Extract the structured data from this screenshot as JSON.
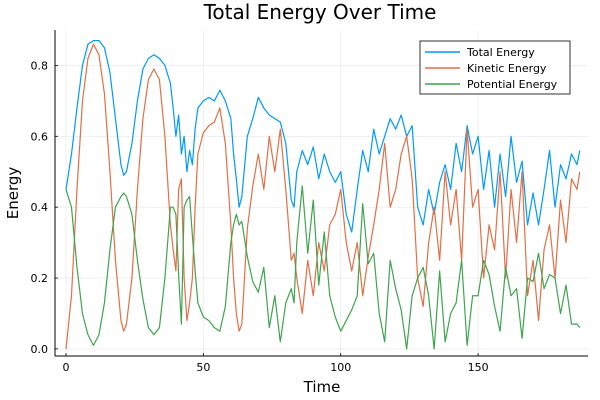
{
  "chart_data": {
    "type": "line",
    "title": "Total Energy Over Time",
    "xlabel": "Time",
    "ylabel": "Energy",
    "xlim": [
      -4,
      190
    ],
    "ylim": [
      -0.02,
      0.9
    ],
    "xticks": [
      0,
      50,
      100,
      150
    ],
    "yticks": [
      0.0,
      0.2,
      0.4,
      0.6,
      0.8
    ],
    "grid": true,
    "legend_position": "top-right",
    "series": [
      {
        "name": "Total Energy",
        "color": "#009af9",
        "points": [
          [
            0,
            0.45
          ],
          [
            2,
            0.55
          ],
          [
            4,
            0.68
          ],
          [
            6,
            0.8
          ],
          [
            8,
            0.86
          ],
          [
            10,
            0.87
          ],
          [
            12,
            0.87
          ],
          [
            14,
            0.85
          ],
          [
            16,
            0.78
          ],
          [
            18,
            0.65
          ],
          [
            20,
            0.52
          ],
          [
            21,
            0.49
          ],
          [
            22,
            0.5
          ],
          [
            24,
            0.58
          ],
          [
            26,
            0.7
          ],
          [
            28,
            0.79
          ],
          [
            30,
            0.82
          ],
          [
            32,
            0.83
          ],
          [
            34,
            0.82
          ],
          [
            36,
            0.8
          ],
          [
            38,
            0.75
          ],
          [
            39,
            0.68
          ],
          [
            40,
            0.6
          ],
          [
            41,
            0.66
          ],
          [
            42,
            0.55
          ],
          [
            43,
            0.6
          ],
          [
            44,
            0.5
          ],
          [
            45,
            0.56
          ],
          [
            46,
            0.52
          ],
          [
            47,
            0.62
          ],
          [
            48,
            0.68
          ],
          [
            50,
            0.7
          ],
          [
            52,
            0.71
          ],
          [
            54,
            0.7
          ],
          [
            56,
            0.73
          ],
          [
            58,
            0.7
          ],
          [
            60,
            0.65
          ],
          [
            61,
            0.55
          ],
          [
            62,
            0.48
          ],
          [
            63,
            0.4
          ],
          [
            64,
            0.43
          ],
          [
            66,
            0.6
          ],
          [
            68,
            0.65
          ],
          [
            70,
            0.71
          ],
          [
            72,
            0.68
          ],
          [
            74,
            0.66
          ],
          [
            76,
            0.65
          ],
          [
            78,
            0.64
          ],
          [
            80,
            0.58
          ],
          [
            81,
            0.5
          ],
          [
            82,
            0.42
          ],
          [
            83,
            0.4
          ],
          [
            84,
            0.5
          ],
          [
            86,
            0.56
          ],
          [
            88,
            0.52
          ],
          [
            90,
            0.57
          ],
          [
            92,
            0.48
          ],
          [
            94,
            0.55
          ],
          [
            96,
            0.5
          ],
          [
            98,
            0.47
          ],
          [
            100,
            0.5
          ],
          [
            102,
            0.38
          ],
          [
            104,
            0.33
          ],
          [
            106,
            0.45
          ],
          [
            108,
            0.56
          ],
          [
            110,
            0.5
          ],
          [
            112,
            0.62
          ],
          [
            114,
            0.55
          ],
          [
            116,
            0.6
          ],
          [
            118,
            0.65
          ],
          [
            120,
            0.62
          ],
          [
            122,
            0.66
          ],
          [
            124,
            0.6
          ],
          [
            126,
            0.63
          ],
          [
            128,
            0.4
          ],
          [
            130,
            0.35
          ],
          [
            132,
            0.45
          ],
          [
            134,
            0.38
          ],
          [
            136,
            0.47
          ],
          [
            138,
            0.52
          ],
          [
            140,
            0.45
          ],
          [
            142,
            0.58
          ],
          [
            144,
            0.5
          ],
          [
            146,
            0.63
          ],
          [
            148,
            0.55
          ],
          [
            150,
            0.6
          ],
          [
            152,
            0.45
          ],
          [
            154,
            0.56
          ],
          [
            156,
            0.4
          ],
          [
            158,
            0.55
          ],
          [
            160,
            0.43
          ],
          [
            162,
            0.6
          ],
          [
            164,
            0.47
          ],
          [
            166,
            0.53
          ],
          [
            168,
            0.35
          ],
          [
            170,
            0.44
          ],
          [
            172,
            0.35
          ],
          [
            174,
            0.45
          ],
          [
            176,
            0.56
          ],
          [
            178,
            0.4
          ],
          [
            180,
            0.52
          ],
          [
            182,
            0.48
          ],
          [
            184,
            0.55
          ],
          [
            186,
            0.52
          ],
          [
            187,
            0.56
          ]
        ]
      },
      {
        "name": "Kinetic Energy",
        "color": "#e26f46",
        "points": [
          [
            0,
            0.0
          ],
          [
            2,
            0.15
          ],
          [
            4,
            0.45
          ],
          [
            6,
            0.7
          ],
          [
            8,
            0.82
          ],
          [
            10,
            0.86
          ],
          [
            12,
            0.83
          ],
          [
            14,
            0.72
          ],
          [
            16,
            0.5
          ],
          [
            18,
            0.25
          ],
          [
            20,
            0.08
          ],
          [
            21,
            0.05
          ],
          [
            22,
            0.07
          ],
          [
            24,
            0.2
          ],
          [
            26,
            0.45
          ],
          [
            28,
            0.65
          ],
          [
            30,
            0.76
          ],
          [
            32,
            0.79
          ],
          [
            34,
            0.76
          ],
          [
            36,
            0.6
          ],
          [
            38,
            0.35
          ],
          [
            39,
            0.28
          ],
          [
            40,
            0.22
          ],
          [
            41,
            0.45
          ],
          [
            42,
            0.48
          ],
          [
            43,
            0.2
          ],
          [
            44,
            0.08
          ],
          [
            45,
            0.13
          ],
          [
            46,
            0.2
          ],
          [
            47,
            0.4
          ],
          [
            48,
            0.55
          ],
          [
            50,
            0.61
          ],
          [
            52,
            0.63
          ],
          [
            54,
            0.64
          ],
          [
            56,
            0.68
          ],
          [
            58,
            0.58
          ],
          [
            60,
            0.35
          ],
          [
            61,
            0.2
          ],
          [
            62,
            0.1
          ],
          [
            63,
            0.05
          ],
          [
            64,
            0.07
          ],
          [
            66,
            0.34
          ],
          [
            68,
            0.46
          ],
          [
            70,
            0.55
          ],
          [
            72,
            0.45
          ],
          [
            74,
            0.6
          ],
          [
            76,
            0.5
          ],
          [
            78,
            0.62
          ],
          [
            80,
            0.45
          ],
          [
            81,
            0.35
          ],
          [
            82,
            0.25
          ],
          [
            83,
            0.27
          ],
          [
            84,
            0.2
          ],
          [
            86,
            0.1
          ],
          [
            88,
            0.25
          ],
          [
            90,
            0.15
          ],
          [
            92,
            0.3
          ],
          [
            94,
            0.22
          ],
          [
            96,
            0.35
          ],
          [
            98,
            0.38
          ],
          [
            100,
            0.45
          ],
          [
            102,
            0.3
          ],
          [
            104,
            0.22
          ],
          [
            106,
            0.3
          ],
          [
            108,
            0.15
          ],
          [
            110,
            0.26
          ],
          [
            112,
            0.35
          ],
          [
            114,
            0.45
          ],
          [
            116,
            0.58
          ],
          [
            118,
            0.4
          ],
          [
            120,
            0.45
          ],
          [
            122,
            0.55
          ],
          [
            124,
            0.6
          ],
          [
            126,
            0.48
          ],
          [
            128,
            0.2
          ],
          [
            130,
            0.12
          ],
          [
            132,
            0.3
          ],
          [
            134,
            0.4
          ],
          [
            136,
            0.25
          ],
          [
            138,
            0.5
          ],
          [
            140,
            0.35
          ],
          [
            142,
            0.45
          ],
          [
            144,
            0.25
          ],
          [
            146,
            0.62
          ],
          [
            148,
            0.4
          ],
          [
            150,
            0.45
          ],
          [
            152,
            0.2
          ],
          [
            154,
            0.35
          ],
          [
            156,
            0.28
          ],
          [
            158,
            0.5
          ],
          [
            160,
            0.2
          ],
          [
            162,
            0.45
          ],
          [
            164,
            0.3
          ],
          [
            166,
            0.5
          ],
          [
            168,
            0.15
          ],
          [
            170,
            0.25
          ],
          [
            172,
            0.08
          ],
          [
            174,
            0.28
          ],
          [
            176,
            0.35
          ],
          [
            178,
            0.2
          ],
          [
            180,
            0.42
          ],
          [
            182,
            0.3
          ],
          [
            184,
            0.48
          ],
          [
            186,
            0.45
          ],
          [
            187,
            0.5
          ]
        ]
      },
      {
        "name": "Potential Energy",
        "color": "#3ea44e",
        "points": [
          [
            0,
            0.45
          ],
          [
            2,
            0.4
          ],
          [
            4,
            0.23
          ],
          [
            6,
            0.1
          ],
          [
            8,
            0.04
          ],
          [
            10,
            0.01
          ],
          [
            12,
            0.04
          ],
          [
            14,
            0.13
          ],
          [
            16,
            0.28
          ],
          [
            18,
            0.4
          ],
          [
            20,
            0.43
          ],
          [
            21,
            0.44
          ],
          [
            22,
            0.43
          ],
          [
            24,
            0.38
          ],
          [
            26,
            0.25
          ],
          [
            28,
            0.14
          ],
          [
            30,
            0.06
          ],
          [
            32,
            0.04
          ],
          [
            34,
            0.06
          ],
          [
            36,
            0.2
          ],
          [
            38,
            0.4
          ],
          [
            39,
            0.4
          ],
          [
            40,
            0.38
          ],
          [
            41,
            0.21
          ],
          [
            42,
            0.07
          ],
          [
            43,
            0.4
          ],
          [
            44,
            0.42
          ],
          [
            45,
            0.43
          ],
          [
            46,
            0.32
          ],
          [
            47,
            0.22
          ],
          [
            48,
            0.13
          ],
          [
            50,
            0.09
          ],
          [
            52,
            0.08
          ],
          [
            54,
            0.06
          ],
          [
            56,
            0.05
          ],
          [
            58,
            0.12
          ],
          [
            60,
            0.3
          ],
          [
            61,
            0.35
          ],
          [
            62,
            0.38
          ],
          [
            63,
            0.35
          ],
          [
            64,
            0.36
          ],
          [
            66,
            0.26
          ],
          [
            68,
            0.19
          ],
          [
            70,
            0.16
          ],
          [
            72,
            0.23
          ],
          [
            74,
            0.06
          ],
          [
            76,
            0.15
          ],
          [
            78,
            0.02
          ],
          [
            80,
            0.13
          ],
          [
            81,
            0.15
          ],
          [
            82,
            0.17
          ],
          [
            83,
            0.13
          ],
          [
            84,
            0.3
          ],
          [
            86,
            0.46
          ],
          [
            88,
            0.27
          ],
          [
            90,
            0.42
          ],
          [
            92,
            0.18
          ],
          [
            94,
            0.33
          ],
          [
            96,
            0.15
          ],
          [
            98,
            0.09
          ],
          [
            100,
            0.05
          ],
          [
            102,
            0.08
          ],
          [
            104,
            0.11
          ],
          [
            106,
            0.15
          ],
          [
            108,
            0.41
          ],
          [
            110,
            0.24
          ],
          [
            112,
            0.27
          ],
          [
            114,
            0.1
          ],
          [
            116,
            0.02
          ],
          [
            118,
            0.25
          ],
          [
            120,
            0.17
          ],
          [
            122,
            0.11
          ],
          [
            124,
            0.0
          ],
          [
            126,
            0.15
          ],
          [
            128,
            0.2
          ],
          [
            130,
            0.23
          ],
          [
            132,
            0.15
          ],
          [
            134,
            0.0
          ],
          [
            136,
            0.22
          ],
          [
            138,
            0.02
          ],
          [
            140,
            0.1
          ],
          [
            142,
            0.13
          ],
          [
            144,
            0.25
          ],
          [
            146,
            0.01
          ],
          [
            148,
            0.15
          ],
          [
            150,
            0.15
          ],
          [
            152,
            0.25
          ],
          [
            154,
            0.21
          ],
          [
            156,
            0.12
          ],
          [
            158,
            0.05
          ],
          [
            160,
            0.23
          ],
          [
            162,
            0.15
          ],
          [
            164,
            0.17
          ],
          [
            166,
            0.03
          ],
          [
            168,
            0.2
          ],
          [
            170,
            0.19
          ],
          [
            172,
            0.27
          ],
          [
            174,
            0.17
          ],
          [
            176,
            0.21
          ],
          [
            178,
            0.2
          ],
          [
            180,
            0.1
          ],
          [
            182,
            0.18
          ],
          [
            184,
            0.07
          ],
          [
            186,
            0.07
          ],
          [
            187,
            0.06
          ]
        ]
      }
    ]
  }
}
